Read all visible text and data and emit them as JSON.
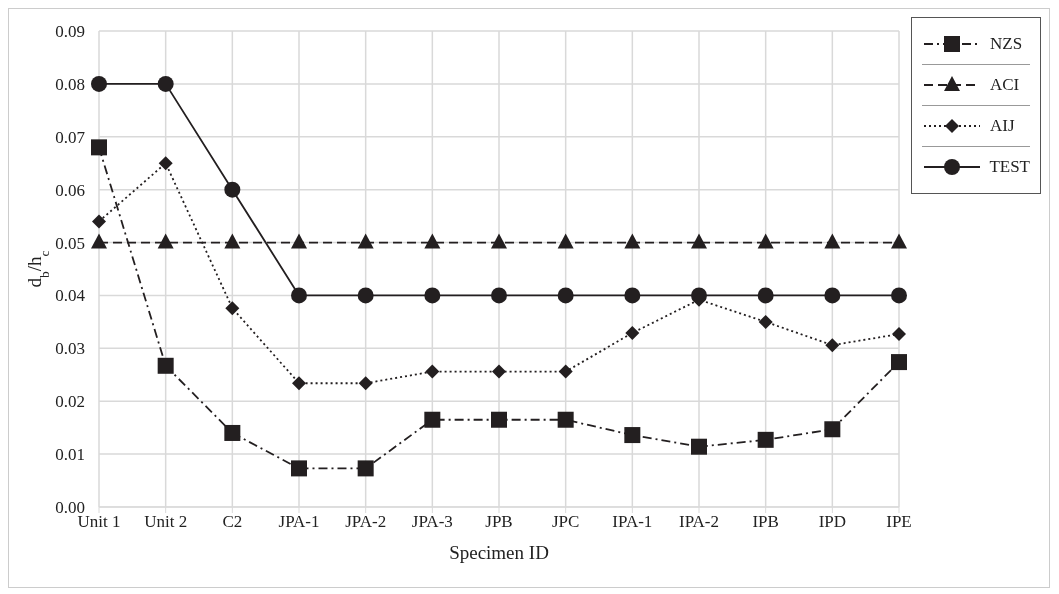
{
  "chart_data": {
    "type": "line",
    "xlabel": "Specimen ID",
    "ylabel": "d$_{b}$/h$_{c}$",
    "categories": [
      "Unit 1",
      "Unit 2",
      "C2",
      "JPA-1",
      "JPA-2",
      "JPA-3",
      "JPB",
      "JPC",
      "IPA-1",
      "IPA-2",
      "IPB",
      "IPD",
      "IPE"
    ],
    "series": [
      {
        "name": "NZS",
        "color": "#231f20",
        "marker": "square",
        "line_style": "dashdot",
        "values": [
          0.068,
          0.0267,
          0.014,
          0.0073,
          0.0073,
          0.0165,
          0.0165,
          0.0165,
          0.0136,
          0.0114,
          0.0127,
          0.0147,
          0.0274
        ]
      },
      {
        "name": "ACI",
        "color": "#231f20",
        "marker": "triangle",
        "line_style": "dashed",
        "values": [
          0.05,
          0.05,
          0.05,
          0.05,
          0.05,
          0.05,
          0.05,
          0.05,
          0.05,
          0.05,
          0.05,
          0.05,
          0.05
        ]
      },
      {
        "name": "AIJ",
        "color": "#231f20",
        "marker": "diamond",
        "line_style": "dotted",
        "values": [
          0.054,
          0.065,
          0.0376,
          0.0234,
          0.0234,
          0.0256,
          0.0256,
          0.0256,
          0.0329,
          0.0392,
          0.035,
          0.0306,
          0.0327
        ]
      },
      {
        "name": "TEST",
        "color": "#231f20",
        "marker": "circle",
        "line_style": "solid",
        "values": [
          0.08,
          0.08,
          0.06,
          0.04,
          0.04,
          0.04,
          0.04,
          0.04,
          0.04,
          0.04,
          0.04,
          0.04,
          0.04
        ]
      }
    ],
    "ylim": [
      0,
      0.09
    ],
    "yticks": [
      {
        "value": 0,
        "label": "0.00"
      },
      {
        "value": 0.01,
        "label": "0.01"
      },
      {
        "value": 0.02,
        "label": "0.02"
      },
      {
        "value": 0.03,
        "label": "0.03"
      },
      {
        "value": 0.04,
        "label": "0.04"
      },
      {
        "value": 0.05,
        "label": "0.05"
      },
      {
        "value": 0.06,
        "label": "0.06"
      },
      {
        "value": 0.07,
        "label": "0.07"
      },
      {
        "value": 0.08,
        "label": "0.08"
      },
      {
        "value": 0.09,
        "label": "0.09"
      }
    ],
    "grid": true,
    "legend": "top right"
  }
}
